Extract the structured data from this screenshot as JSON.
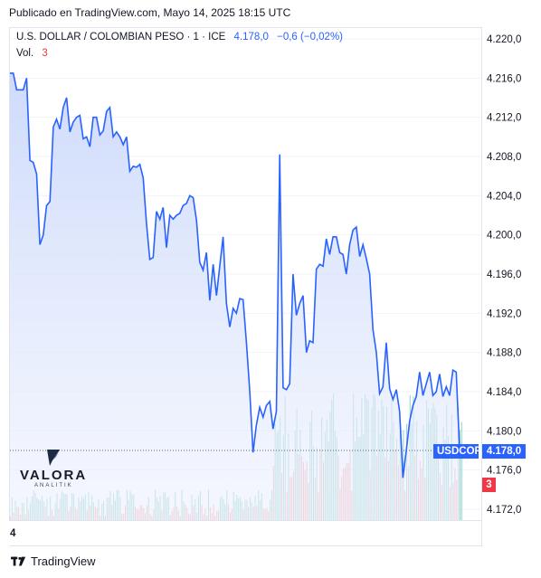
{
  "header": {
    "published": "Publicado en TradingView.com, Mayo 14, 2025 18:15 UTC"
  },
  "legend": {
    "symbol": "U.S. DOLLAR / COLOMBIAN PESO · 1 · ICE",
    "last": "4.178,0",
    "change": "−0,6 (−0,02%)",
    "vol_label": "Vol.",
    "vol_value": "3"
  },
  "tags": {
    "symbol": "USDCOP",
    "price": "4.178,0",
    "volume": "3"
  },
  "x_axis_label": "4",
  "watermark": {
    "name": "VALORA",
    "sub": "ANALITIK"
  },
  "footer": {
    "brand": "TradingView"
  },
  "colors": {
    "line": "#2962ff",
    "area_fill": "#dfe6fb",
    "up_volume": "#26a69a",
    "down_volume": "#f23645",
    "grid": "#f0f3fa"
  },
  "chart_data": {
    "type": "area",
    "y_ticks": [
      "4.220,0",
      "4.216,0",
      "4.212,0",
      "4.208,0",
      "4.204,0",
      "4.200,0",
      "4.196,0",
      "4.192,0",
      "4.188,0",
      "4.184,0",
      "4.180,0",
      "4.176,0",
      "4.172,0"
    ],
    "y_tick_values": [
      4220,
      4216,
      4212,
      4208,
      4204,
      4200,
      4196,
      4192,
      4188,
      4184,
      4180,
      4176,
      4172
    ],
    "ylim": [
      4172,
      4222.5
    ],
    "last_price": 4178.0,
    "series": [
      {
        "values": [
          4216.5,
          4216.5,
          4214.8,
          4214.8,
          4214.8,
          4216.0,
          4207.6,
          4207.4,
          4206.2,
          4199.0,
          4200.0,
          4203.0,
          4203.4,
          4211.0,
          4211.8,
          4210.8,
          4213.0,
          4214.0,
          4210.5,
          4211.5,
          4212.0,
          4212.2,
          4209.8,
          4210.0,
          4209.0,
          4212.0,
          4212.0,
          4210.2,
          4210.6,
          4212.6,
          4213.0,
          4210.0,
          4210.5,
          4210.0,
          4209.2,
          4210.0,
          4206.5,
          4207.0,
          4206.9,
          4207.2,
          4205.8,
          4201.2,
          4197.5,
          4197.7,
          4202.4,
          4201.6,
          4202.8,
          4198.7,
          4202.0,
          4201.6,
          4202.0,
          4202.2,
          4203.0,
          4203.2,
          4204.0,
          4203.8,
          4201.5,
          4197.2,
          4196.4,
          4198.2,
          4193.3,
          4197.0,
          4193.8,
          4196.8,
          4199.8,
          4193.0,
          4190.6,
          4192.5,
          4192.0,
          4193.5,
          4193.4,
          4189.0,
          4184.0,
          4177.8,
          4180.6,
          4182.4,
          4181.4,
          4182.6,
          4183.0,
          4180.2,
          4182.0,
          4208.2,
          4184.4,
          4184.2,
          4184.8,
          4196.0,
          4191.8,
          4193.0,
          4193.8,
          4188.0,
          4189.2,
          4189.0,
          4196.5,
          4197.0,
          4196.8,
          4199.6,
          4198.0,
          4199.8,
          4199.8,
          4198.2,
          4198.0,
          4196.0,
          4199.0,
          4200.5,
          4200.8,
          4197.8,
          4199.0,
          4197.6,
          4196.0,
          4190.3,
          4188.0,
          4183.8,
          4184.5,
          4189.0,
          4184.3,
          4183.2,
          4184.2,
          4182.0,
          4175.2,
          4178.0,
          4181.0,
          4182.6,
          4183.5,
          4186.0,
          4183.6,
          4184.8,
          4186.0,
          4183.6,
          4184.0,
          4185.8,
          4183.5,
          4184.5,
          4183.6,
          4186.2,
          4186.0,
          4178.0
        ],
        "volumes_up": [
          0.5,
          0.9,
          0.6,
          1.0,
          0.7,
          1.0,
          0.8,
          0.6,
          0.7,
          0.9,
          1.0,
          0.8,
          0.6,
          0.9,
          0.7,
          1.0,
          0.5,
          0.8,
          0.9,
          0.6,
          0.7,
          1.0,
          0.9,
          0.6,
          0.8,
          0.7,
          1.0,
          0.6,
          0.9,
          0.8
        ]
      }
    ]
  }
}
